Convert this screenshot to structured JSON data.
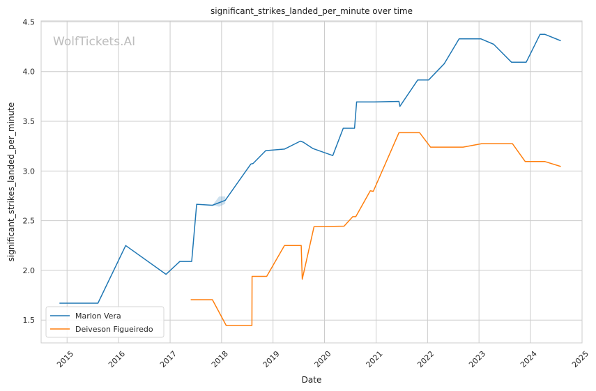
{
  "chart_data": {
    "type": "line",
    "title": "significant_strikes_landed_per_minute over time",
    "xlabel": "Date",
    "ylabel": "significant_strikes_landed_per_minute",
    "watermark": "WolfTickets.AI",
    "x_ticks": [
      "2015",
      "2016",
      "2017",
      "2018",
      "2019",
      "2020",
      "2021",
      "2022",
      "2023",
      "2024",
      "2025"
    ],
    "y_ticks": [
      "1.5",
      "2.0",
      "2.5",
      "3.0",
      "3.5",
      "4.0",
      "4.5"
    ],
    "xlim": [
      "2014-07-01",
      "2025-01-01"
    ],
    "ylim": [
      1.27,
      4.51
    ],
    "grid": true,
    "legend_position": "lower-left",
    "series": [
      {
        "name": "Marlon Vera",
        "color": "#1f77b4",
        "points": [
          [
            "2014-11-08",
            1.67
          ],
          [
            "2015-08-08",
            1.67
          ],
          [
            "2016-02-21",
            2.25
          ],
          [
            "2016-12-03",
            1.96
          ],
          [
            "2017-03-11",
            2.09
          ],
          [
            "2017-06-03",
            2.09
          ],
          [
            "2017-07-08",
            2.665
          ],
          [
            "2017-10-28",
            2.655
          ],
          [
            "2018-01-27",
            2.705
          ],
          [
            "2018-07-28",
            3.07
          ],
          [
            "2018-08-12",
            3.075
          ],
          [
            "2018-11-10",
            3.205
          ],
          [
            "2019-03-23",
            3.22
          ],
          [
            "2019-07-14",
            3.3
          ],
          [
            "2019-08-03",
            3.29
          ],
          [
            "2019-10-12",
            3.225
          ],
          [
            "2020-02-29",
            3.155
          ],
          [
            "2020-05-13",
            3.43
          ],
          [
            "2020-08-01",
            3.43
          ],
          [
            "2020-08-16",
            3.695
          ],
          [
            "2020-12-19",
            3.695
          ],
          [
            "2021-06-12",
            3.7
          ],
          [
            "2021-06-19",
            3.65
          ],
          [
            "2021-10-23",
            3.915
          ],
          [
            "2022-01-08",
            3.915
          ],
          [
            "2022-04-30",
            4.08
          ],
          [
            "2022-08-13",
            4.33
          ],
          [
            "2023-01-14",
            4.33
          ],
          [
            "2023-04-15",
            4.275
          ],
          [
            "2023-08-19",
            4.095
          ],
          [
            "2023-12-02",
            4.095
          ],
          [
            "2024-03-09",
            4.375
          ],
          [
            "2024-04-13",
            4.375
          ],
          [
            "2024-08-03",
            4.31
          ]
        ],
        "band": [
          [
            "2017-10-28",
            2.655,
            2.655
          ],
          [
            "2017-12-15",
            2.64,
            2.745
          ],
          [
            "2018-01-27",
            2.67,
            2.745
          ],
          [
            "2018-01-28",
            2.705,
            2.705
          ]
        ]
      },
      {
        "name": "Deiveson Figueiredo",
        "color": "#ff7f0e",
        "points": [
          [
            "2017-05-27",
            1.705
          ],
          [
            "2017-10-28",
            1.705
          ],
          [
            "2018-02-03",
            1.445
          ],
          [
            "2018-08-04",
            1.445
          ],
          [
            "2018-08-05",
            1.94
          ],
          [
            "2018-11-17",
            1.94
          ],
          [
            "2019-03-23",
            2.25
          ],
          [
            "2019-07-20",
            2.25
          ],
          [
            "2019-07-27",
            1.91
          ],
          [
            "2019-10-19",
            2.44
          ],
          [
            "2020-05-19",
            2.445
          ],
          [
            "2020-07-19",
            2.54
          ],
          [
            "2020-08-10",
            2.54
          ],
          [
            "2020-11-21",
            2.8
          ],
          [
            "2020-12-12",
            2.795
          ],
          [
            "2021-06-12",
            3.385
          ],
          [
            "2021-11-06",
            3.385
          ],
          [
            "2022-01-22",
            3.24
          ],
          [
            "2022-09-10",
            3.24
          ],
          [
            "2023-01-21",
            3.275
          ],
          [
            "2023-08-26",
            3.275
          ],
          [
            "2023-11-25",
            3.095
          ],
          [
            "2024-04-13",
            3.095
          ],
          [
            "2024-08-03",
            3.045
          ]
        ]
      }
    ]
  }
}
